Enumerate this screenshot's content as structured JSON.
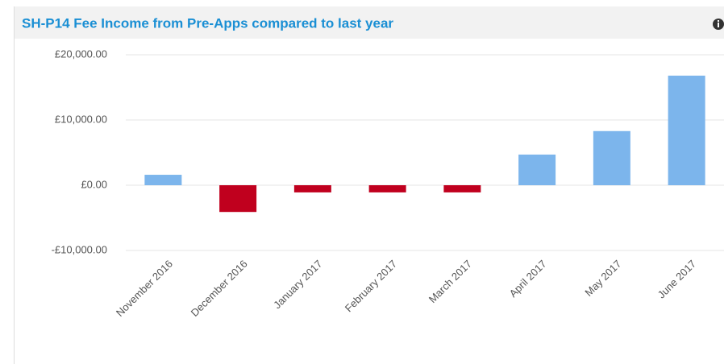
{
  "chart_data": {
    "type": "bar",
    "title": "SH-P14 Fee Income from Pre-Apps compared to last year",
    "categories": [
      "November 2016",
      "December 2016",
      "January 2017",
      "February 2017",
      "March 2017",
      "April 2017",
      "May 2017",
      "June 2017"
    ],
    "values": [
      1600,
      -4100,
      -1100,
      -1100,
      -1100,
      4700,
      8300,
      16800
    ],
    "color": "#7cb5ec",
    "negative_color": "#c0001e",
    "ylim": [
      -10000,
      20000
    ],
    "yticks": [
      {
        "value": -10000,
        "label": "-£10,000.00"
      },
      {
        "value": 0,
        "label": "£0.00"
      },
      {
        "value": 10000,
        "label": "£10,000.00"
      },
      {
        "value": 20000,
        "label": "£20,000.00"
      }
    ],
    "grid": true
  }
}
